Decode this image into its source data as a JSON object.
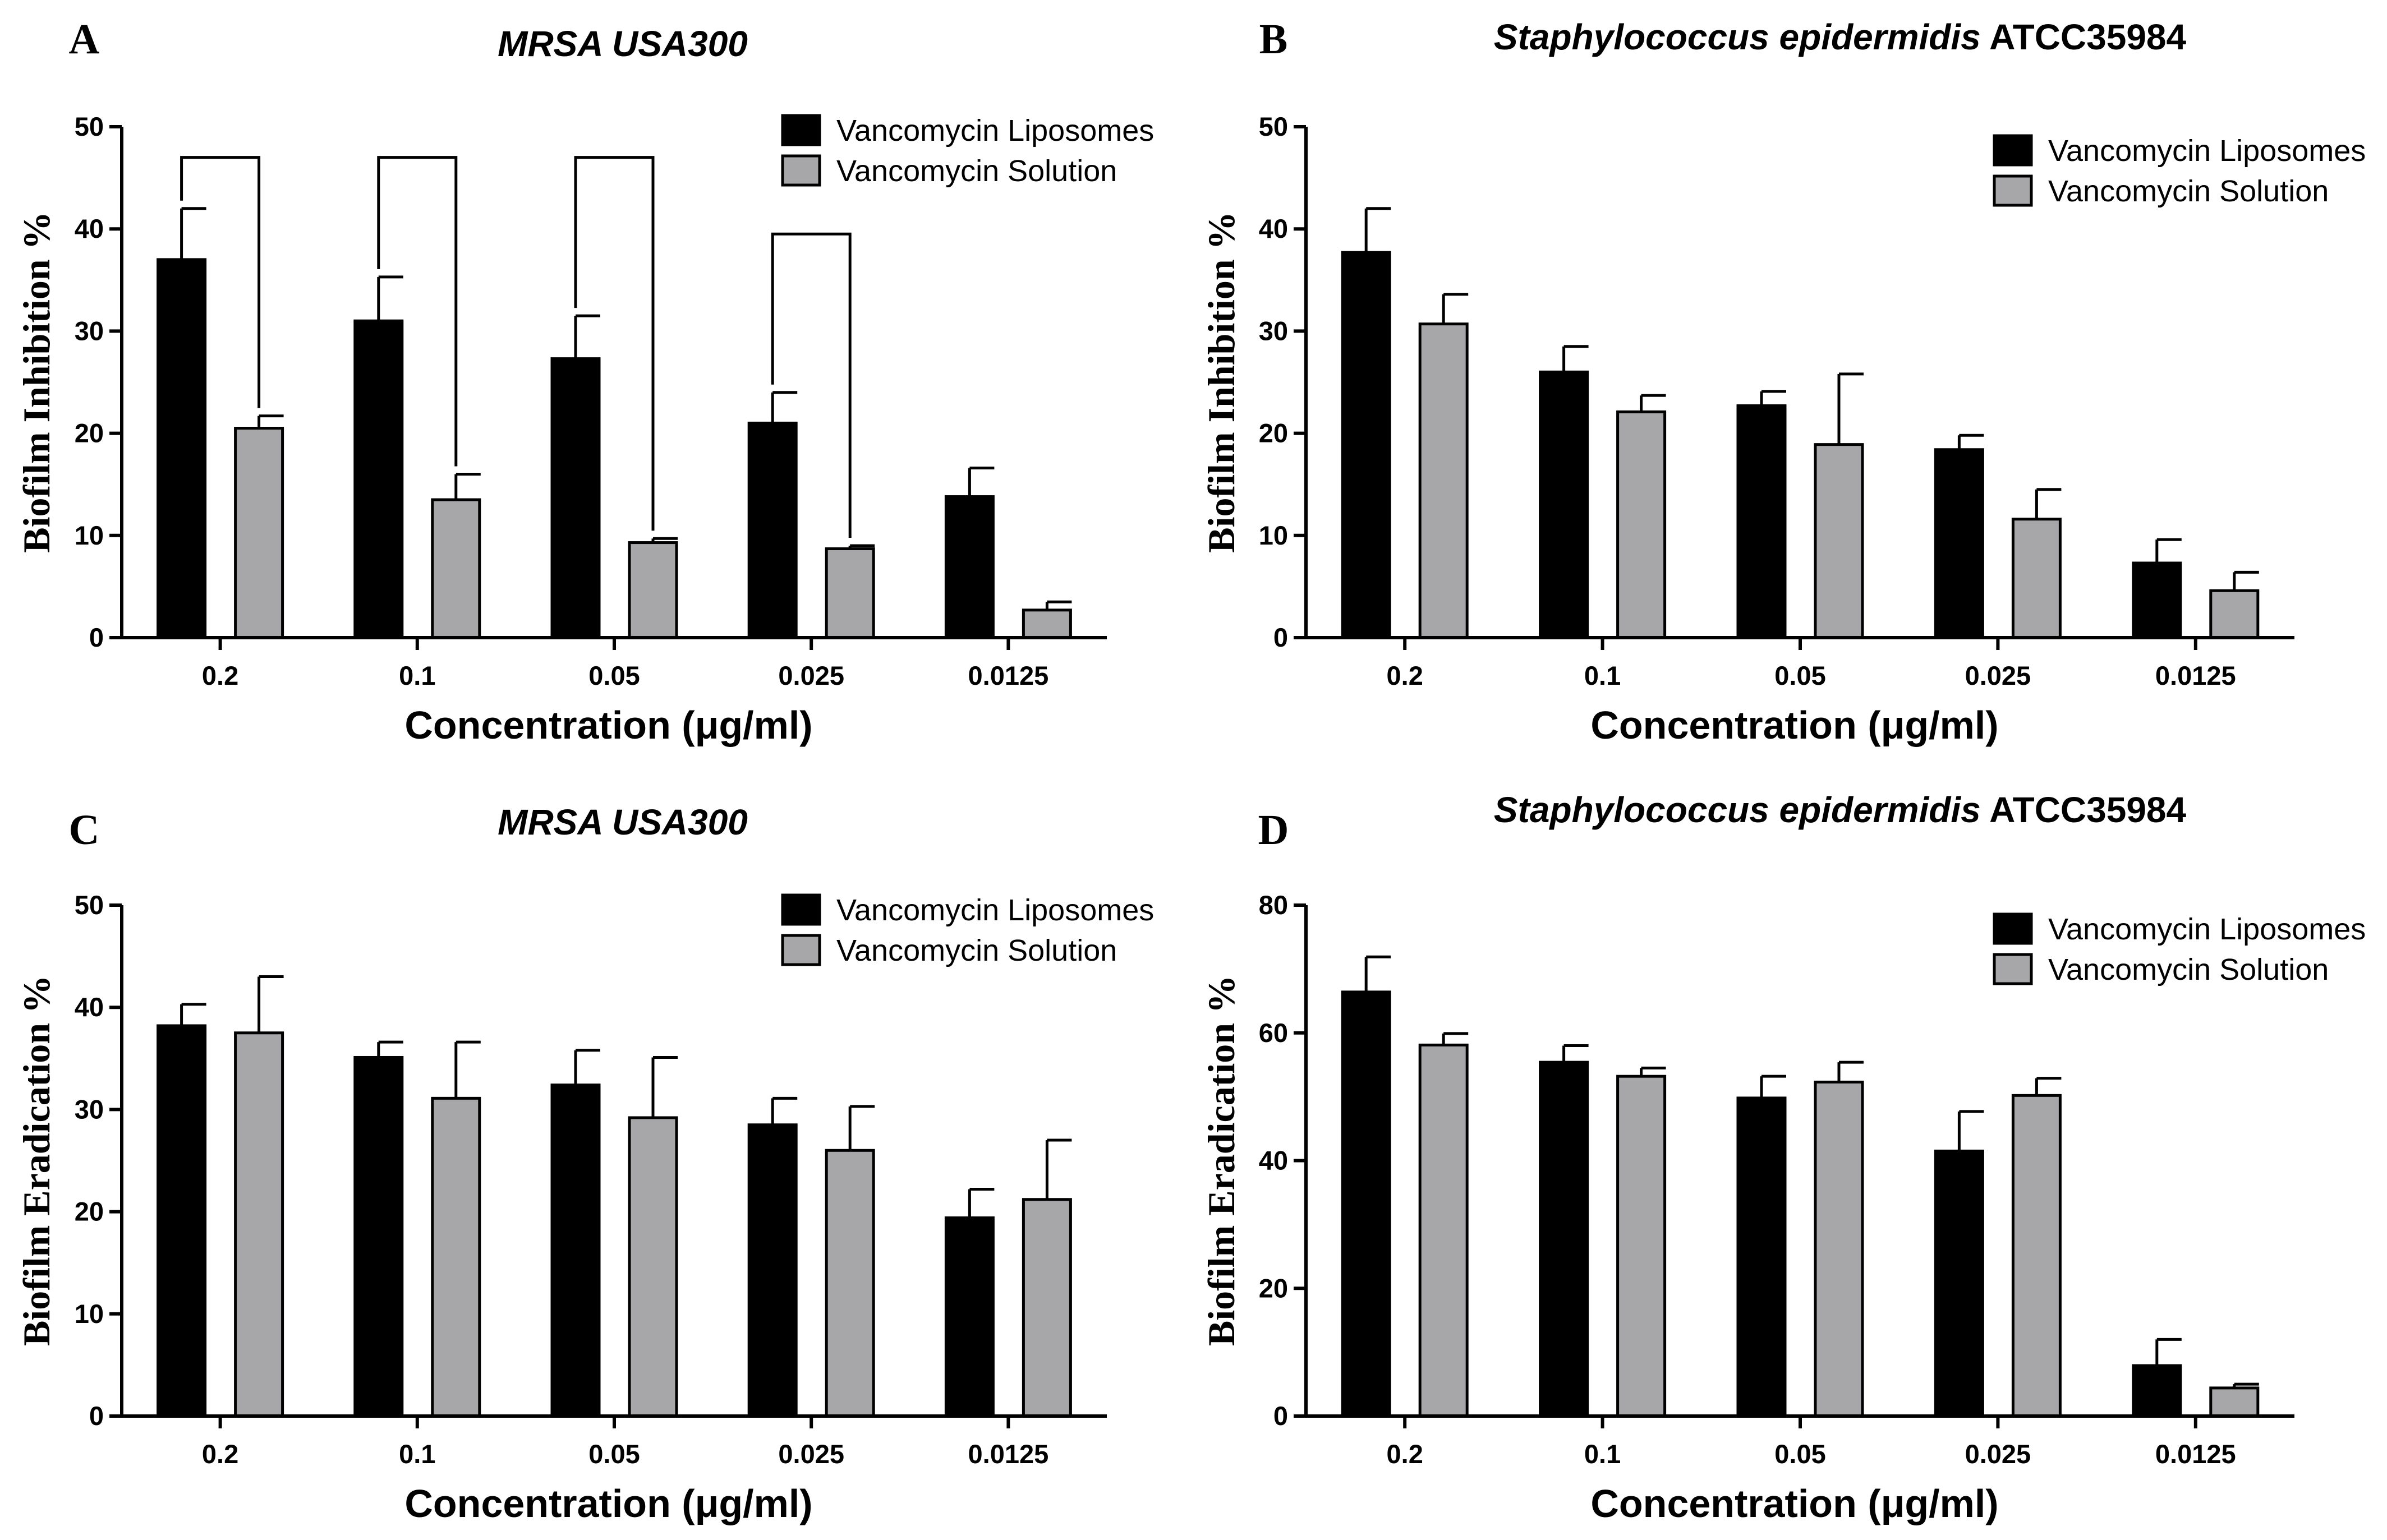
{
  "colors": {
    "liposomes": "#000000",
    "solution": "#a7a7aa",
    "axis": "#000000"
  },
  "chart_data": [
    {
      "panel": "A",
      "type": "bar",
      "title_italic": "MRSA USA300",
      "title_normal": "",
      "xlabel": "Concentration (μg/ml)",
      "ylabel": "Biofilm Inhibition %",
      "categories": [
        "0.2",
        "0.1",
        "0.05",
        "0.025",
        "0.0125"
      ],
      "ylim": [
        0,
        50
      ],
      "yticks": [
        "0",
        "10",
        "20",
        "30",
        "40",
        "50"
      ],
      "legend_position": "top-right",
      "series": [
        {
          "name": "Vancomycin Liposomes",
          "values": [
            37,
            31,
            27.3,
            21,
            13.8
          ],
          "errors": [
            5,
            4.3,
            4.2,
            3,
            2.8
          ]
        },
        {
          "name": "Vancomycin Solution",
          "values": [
            20.5,
            13.5,
            9.3,
            8.7,
            2.7
          ],
          "errors": [
            1.2,
            2.5,
            0.4,
            0.3,
            0.8
          ]
        }
      ],
      "significance_brackets": [
        {
          "category": 0,
          "top": 47
        },
        {
          "category": 1,
          "top": 47
        },
        {
          "category": 2,
          "top": 47
        },
        {
          "category": 3,
          "top": 39.5
        }
      ]
    },
    {
      "panel": "B",
      "type": "bar",
      "title_italic": "Staphylococcus epidermidis",
      "title_normal": "ATCC35984",
      "xlabel": "Concentration (μg/ml)",
      "ylabel": "Biofilm Inhibition %",
      "categories": [
        "0.2",
        "0.1",
        "0.05",
        "0.025",
        "0.0125"
      ],
      "ylim": [
        0,
        50
      ],
      "yticks": [
        "0",
        "10",
        "20",
        "30",
        "40",
        "50"
      ],
      "legend_position": "top-right",
      "series": [
        {
          "name": "Vancomycin Liposomes",
          "values": [
            37.7,
            26,
            22.7,
            18.4,
            7.3
          ],
          "errors": [
            4.3,
            2.5,
            1.4,
            1.4,
            2.3
          ]
        },
        {
          "name": "Vancomycin Solution",
          "values": [
            30.7,
            22.1,
            18.9,
            11.6,
            4.6
          ],
          "errors": [
            2.9,
            1.6,
            6.9,
            2.9,
            1.8
          ]
        }
      ],
      "significance_brackets": []
    },
    {
      "panel": "C",
      "type": "bar",
      "title_italic": "MRSA USA300",
      "title_normal": "",
      "xlabel": "Concentration (μg/ml)",
      "ylabel": "Biofilm Eradication %",
      "categories": [
        "0.2",
        "0.1",
        "0.05",
        "0.025",
        "0.0125"
      ],
      "ylim": [
        0,
        50
      ],
      "yticks": [
        "0",
        "10",
        "20",
        "30",
        "40",
        "50"
      ],
      "legend_position": "top-right",
      "series": [
        {
          "name": "Vancomycin Liposomes",
          "values": [
            38.2,
            35.1,
            32.4,
            28.5,
            19.4
          ],
          "errors": [
            2.1,
            1.5,
            3.4,
            2.6,
            2.8
          ]
        },
        {
          "name": "Vancomycin Solution",
          "values": [
            37.5,
            31.1,
            29.2,
            26,
            21.2
          ],
          "errors": [
            5.5,
            5.5,
            5.9,
            4.3,
            5.8
          ]
        }
      ],
      "significance_brackets": []
    },
    {
      "panel": "D",
      "type": "bar",
      "title_italic": "Staphylococcus epidermidis",
      "title_normal": "ATCC35984",
      "xlabel": "Concentration (μg/ml)",
      "ylabel": "Biofilm Eradication %",
      "categories": [
        "0.2",
        "0.1",
        "0.05",
        "0.025",
        "0.0125"
      ],
      "ylim": [
        0,
        80
      ],
      "yticks": [
        "0",
        "20",
        "40",
        "60",
        "80"
      ],
      "legend_position": "top-right",
      "series": [
        {
          "name": "Vancomycin Liposomes",
          "values": [
            66.4,
            55.4,
            49.8,
            41.5,
            7.9
          ],
          "errors": [
            5.5,
            2.6,
            3.4,
            6.2,
            4.1
          ]
        },
        {
          "name": "Vancomycin Solution",
          "values": [
            58.1,
            53.2,
            52.3,
            50.2,
            4.4
          ],
          "errors": [
            1.8,
            1.3,
            3.1,
            2.7,
            0.6
          ]
        }
      ],
      "significance_brackets": []
    }
  ]
}
